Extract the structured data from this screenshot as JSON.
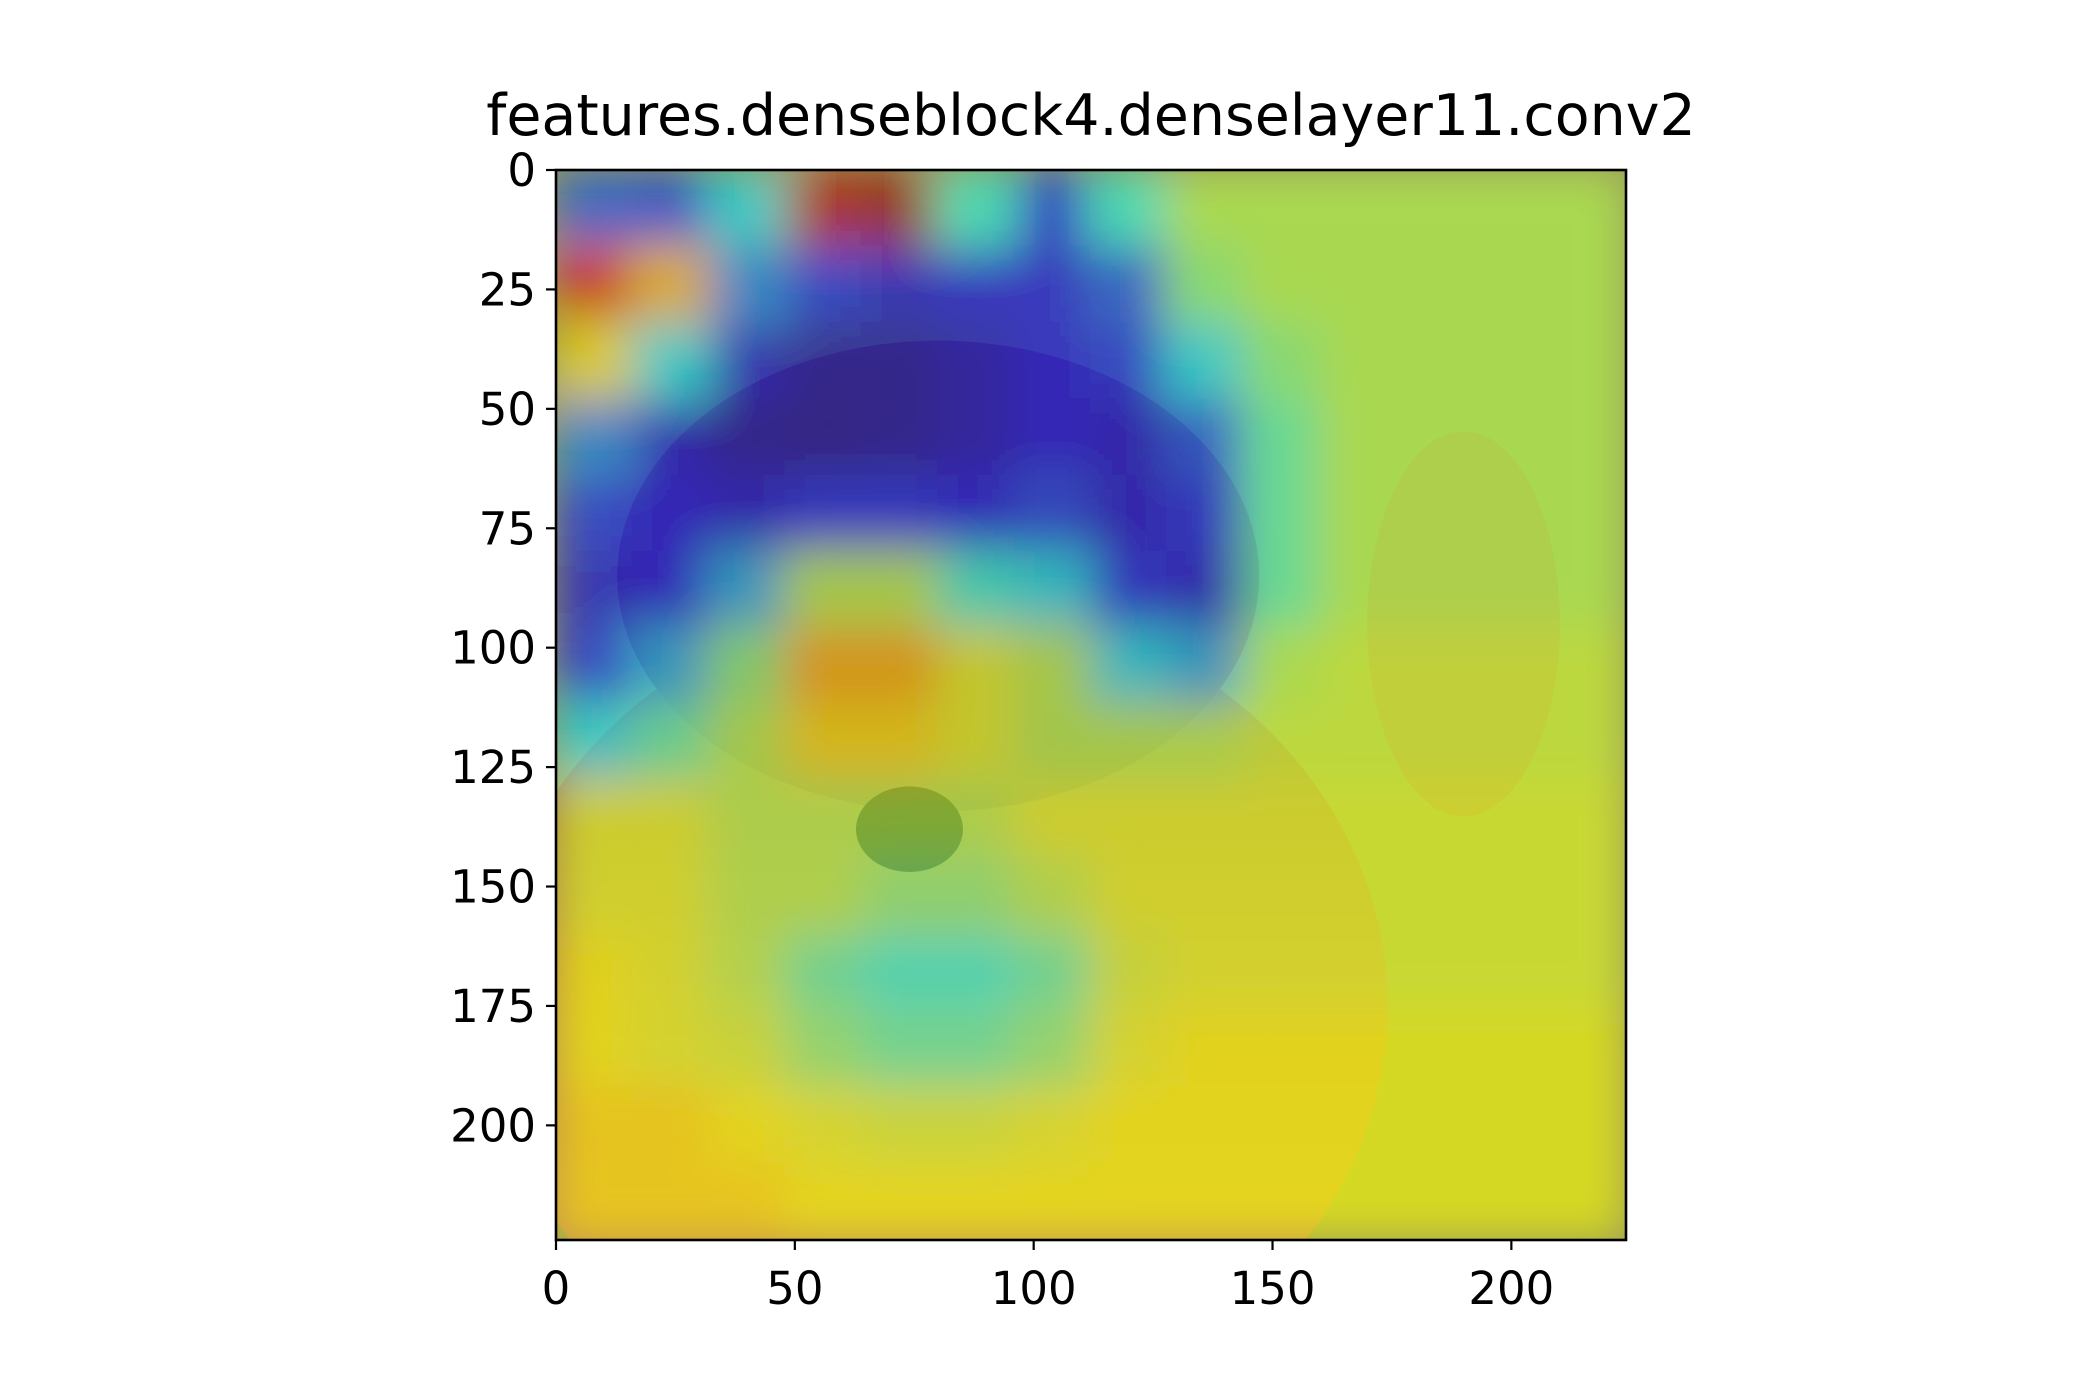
{
  "chart_data": {
    "type": "heatmap",
    "title": "features.denseblock4.denselayer11.conv2",
    "xlabel": "",
    "ylabel": "",
    "xlim": [
      0,
      224
    ],
    "ylim": [
      224,
      0
    ],
    "x_ticks": [
      0,
      50,
      100,
      150,
      200
    ],
    "y_ticks": [
      0,
      25,
      50,
      75,
      100,
      125,
      150,
      175,
      200
    ],
    "grid": false,
    "colormap": "jet",
    "heat_grid": [
      [
        0.2,
        0.18,
        0.35,
        0.95,
        0.98,
        0.4,
        0.15,
        0.4,
        0.55,
        0.55,
        0.55,
        0.55,
        0.55,
        0.55
      ],
      [
        0.9,
        0.7,
        0.25,
        0.15,
        0.1,
        0.12,
        0.12,
        0.2,
        0.5,
        0.55,
        0.55,
        0.55,
        0.55,
        0.55
      ],
      [
        0.65,
        0.35,
        0.1,
        0.05,
        0.05,
        0.08,
        0.12,
        0.15,
        0.35,
        0.5,
        0.55,
        0.55,
        0.55,
        0.55
      ],
      [
        0.25,
        0.1,
        0.05,
        0.04,
        0.05,
        0.08,
        0.12,
        0.1,
        0.2,
        0.45,
        0.55,
        0.55,
        0.55,
        0.55
      ],
      [
        0.15,
        0.12,
        0.1,
        0.15,
        0.15,
        0.12,
        0.18,
        0.1,
        0.15,
        0.45,
        0.55,
        0.55,
        0.55,
        0.55
      ],
      [
        0.1,
        0.12,
        0.3,
        0.55,
        0.55,
        0.4,
        0.35,
        0.15,
        0.1,
        0.45,
        0.55,
        0.55,
        0.55,
        0.55
      ],
      [
        0.15,
        0.3,
        0.5,
        0.7,
        0.7,
        0.6,
        0.55,
        0.35,
        0.3,
        0.55,
        0.58,
        0.58,
        0.58,
        0.58
      ],
      [
        0.35,
        0.45,
        0.55,
        0.65,
        0.65,
        0.6,
        0.55,
        0.55,
        0.55,
        0.58,
        0.58,
        0.58,
        0.58,
        0.58
      ],
      [
        0.6,
        0.6,
        0.55,
        0.55,
        0.55,
        0.55,
        0.6,
        0.6,
        0.6,
        0.6,
        0.6,
        0.6,
        0.6,
        0.6
      ],
      [
        0.6,
        0.6,
        0.55,
        0.55,
        0.5,
        0.5,
        0.55,
        0.6,
        0.6,
        0.6,
        0.6,
        0.6,
        0.6,
        0.6
      ],
      [
        0.62,
        0.6,
        0.55,
        0.45,
        0.4,
        0.4,
        0.45,
        0.58,
        0.6,
        0.6,
        0.6,
        0.6,
        0.6,
        0.6
      ],
      [
        0.62,
        0.6,
        0.58,
        0.5,
        0.45,
        0.45,
        0.5,
        0.6,
        0.62,
        0.62,
        0.62,
        0.62,
        0.62,
        0.62
      ],
      [
        0.65,
        0.65,
        0.62,
        0.6,
        0.58,
        0.58,
        0.6,
        0.62,
        0.62,
        0.62,
        0.62,
        0.62,
        0.62,
        0.62
      ],
      [
        0.65,
        0.65,
        0.65,
        0.62,
        0.62,
        0.62,
        0.62,
        0.62,
        0.62,
        0.62,
        0.62,
        0.62,
        0.62,
        0.62
      ]
    ]
  }
}
